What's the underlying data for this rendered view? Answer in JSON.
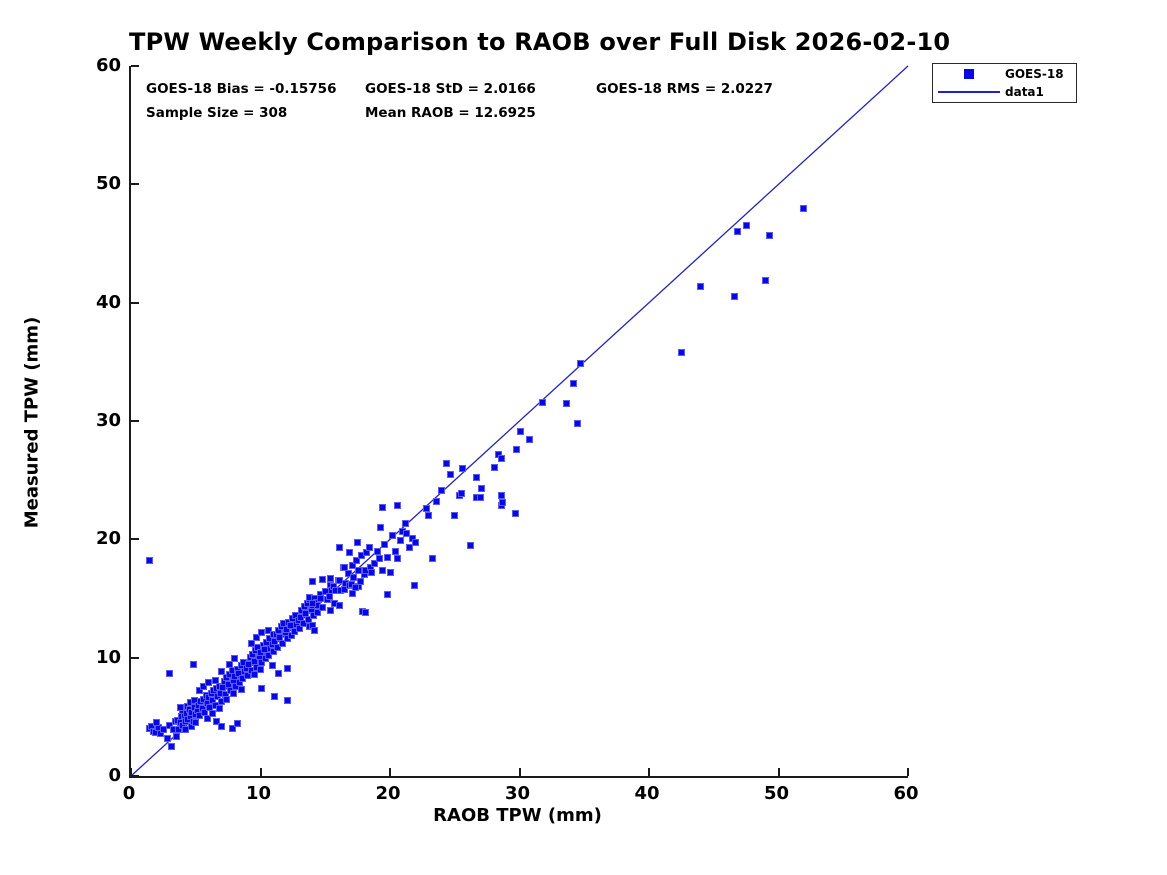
{
  "chart_data": {
    "type": "scatter",
    "title": "TPW Weekly Comparison to RAOB over Full Disk 2026-02-10",
    "xlabel": "RAOB TPW (mm)",
    "ylabel": "Measured TPW (mm)",
    "xlim": [
      0,
      60
    ],
    "ylim": [
      0,
      60
    ],
    "xticks": [
      0,
      10,
      20,
      30,
      40,
      50,
      60
    ],
    "yticks": [
      0,
      10,
      20,
      30,
      40,
      50,
      60
    ],
    "grid": false,
    "legend_position": "outside-top-right",
    "stats": {
      "bias": "GOES-18 Bias = -0.15756",
      "std": "GOES-18 StD = 2.0166",
      "rms": "GOES-18 RMS = 2.0227",
      "sample_size": "Sample Size = 308",
      "mean_raob": "Mean RAOB = 12.6925"
    },
    "legend": [
      {
        "label": "GOES-18",
        "sample": "square-marker"
      },
      {
        "label": "data1",
        "sample": "line"
      }
    ],
    "colors": {
      "marker_fill": "#0606ec",
      "marker_edge": "#5a5af6",
      "line": "#2121cc",
      "axis": "#1a1a1a",
      "text": "#000000"
    },
    "series": [
      {
        "name": "GOES-18",
        "type": "scatter",
        "points": [
          [
            1.4,
            4.0
          ],
          [
            1.6,
            4.2
          ],
          [
            1.7,
            3.8
          ],
          [
            1.9,
            3.7
          ],
          [
            2.1,
            4.1
          ],
          [
            2.3,
            3.6
          ],
          [
            2.5,
            3.9
          ],
          [
            2.8,
            3.2
          ],
          [
            3.0,
            4.3
          ],
          [
            3.1,
            2.5
          ],
          [
            3.3,
            3.9
          ],
          [
            3.5,
            3.3
          ],
          [
            2.0,
            4.5
          ],
          [
            3.4,
            4.6
          ],
          [
            1.4,
            18.2
          ],
          [
            3.0,
            8.7
          ],
          [
            4.8,
            9.4
          ],
          [
            3.6,
            4.7
          ],
          [
            3.7,
            3.9
          ],
          [
            3.8,
            4.5
          ],
          [
            3.9,
            5.0
          ],
          [
            4.0,
            4.3
          ],
          [
            4.0,
            5.5
          ],
          [
            4.1,
            5.0
          ],
          [
            4.2,
            4.6
          ],
          [
            4.2,
            3.9
          ],
          [
            4.3,
            5.3
          ],
          [
            4.4,
            4.8
          ],
          [
            4.4,
            5.9
          ],
          [
            4.5,
            5.6
          ],
          [
            4.6,
            5.0
          ],
          [
            4.6,
            6.2
          ],
          [
            4.7,
            5.4
          ],
          [
            4.7,
            4.2
          ],
          [
            4.8,
            4.6
          ],
          [
            4.9,
            5.8
          ],
          [
            4.9,
            6.4
          ],
          [
            5.0,
            5.2
          ],
          [
            5.0,
            4.5
          ],
          [
            3.8,
            5.8
          ],
          [
            5.1,
            5.5
          ],
          [
            5.2,
            6.0
          ],
          [
            5.3,
            5.1
          ],
          [
            5.3,
            7.2
          ],
          [
            5.4,
            6.3
          ],
          [
            5.5,
            5.7
          ],
          [
            5.6,
            6.5
          ],
          [
            5.6,
            7.6
          ],
          [
            5.7,
            5.4
          ],
          [
            5.8,
            6.8
          ],
          [
            5.9,
            6.1
          ],
          [
            5.9,
            4.9
          ],
          [
            6.0,
            6.6
          ],
          [
            6.0,
            7.9
          ],
          [
            6.1,
            5.8
          ],
          [
            6.2,
            7.0
          ],
          [
            6.3,
            6.4
          ],
          [
            6.3,
            5.3
          ],
          [
            6.4,
            7.2
          ],
          [
            6.5,
            6.0
          ],
          [
            6.5,
            8.1
          ],
          [
            6.6,
            7.4
          ],
          [
            6.6,
            4.6
          ],
          [
            6.7,
            6.7
          ],
          [
            6.8,
            7.6
          ],
          [
            6.8,
            5.7
          ],
          [
            6.9,
            7.0
          ],
          [
            7.0,
            6.3
          ],
          [
            7.0,
            4.2
          ],
          [
            7.1,
            7.5
          ],
          [
            7.2,
            8.0
          ],
          [
            7.3,
            6.9
          ],
          [
            7.4,
            8.3
          ],
          [
            7.4,
            6.5
          ],
          [
            7.5,
            7.7
          ],
          [
            7.6,
            8.6
          ],
          [
            7.6,
            9.4
          ],
          [
            7.7,
            7.2
          ],
          [
            7.8,
            8.9
          ],
          [
            7.8,
            4.0
          ],
          [
            7.9,
            8.1
          ],
          [
            7.9,
            7.0
          ],
          [
            8.0,
            8.4
          ],
          [
            8.0,
            9.9
          ],
          [
            8.1,
            7.6
          ],
          [
            8.2,
            9.0
          ],
          [
            8.2,
            4.4
          ],
          [
            8.3,
            8.7
          ],
          [
            8.4,
            7.9
          ],
          [
            8.5,
            9.3
          ],
          [
            8.5,
            7.3
          ],
          [
            8.6,
            8.2
          ],
          [
            8.7,
            9.6
          ],
          [
            8.8,
            8.8
          ],
          [
            8.9,
            9.1
          ],
          [
            9.0,
            8.5
          ],
          [
            7.0,
            8.8
          ],
          [
            9.1,
            9.4
          ],
          [
            9.2,
            10.0
          ],
          [
            9.3,
            8.9
          ],
          [
            9.3,
            11.2
          ],
          [
            9.4,
            10.3
          ],
          [
            9.5,
            9.7
          ],
          [
            9.5,
            8.6
          ],
          [
            9.6,
            10.6
          ],
          [
            9.7,
            9.2
          ],
          [
            9.7,
            11.7
          ],
          [
            9.8,
            10.9
          ],
          [
            9.9,
            10.1
          ],
          [
            10.0,
            10.4
          ],
          [
            10.0,
            9.0
          ],
          [
            10.1,
            9.6
          ],
          [
            10.1,
            12.1
          ],
          [
            10.1,
            7.4
          ],
          [
            10.2,
            11.0
          ],
          [
            10.3,
            10.7
          ],
          [
            10.4,
            9.9
          ],
          [
            10.5,
            11.3
          ],
          [
            10.6,
            10.2
          ],
          [
            10.6,
            12.3
          ],
          [
            10.7,
            11.6
          ],
          [
            10.8,
            10.8
          ],
          [
            10.9,
            11.1
          ],
          [
            10.9,
            9.3
          ],
          [
            11.0,
            10.5
          ],
          [
            11.0,
            12.0
          ],
          [
            11.1,
            6.7
          ],
          [
            11.1,
            11.4
          ],
          [
            11.2,
            12.0
          ],
          [
            11.3,
            10.9
          ],
          [
            11.4,
            12.3
          ],
          [
            11.4,
            8.7
          ],
          [
            11.5,
            11.7
          ],
          [
            11.6,
            12.6
          ],
          [
            11.7,
            11.2
          ],
          [
            11.8,
            12.9
          ],
          [
            11.9,
            12.1
          ],
          [
            12.0,
            12.4
          ],
          [
            12.1,
            11.6
          ],
          [
            12.1,
            9.1
          ],
          [
            12.1,
            6.4
          ],
          [
            12.2,
            13.0
          ],
          [
            12.3,
            12.7
          ],
          [
            12.4,
            11.9
          ],
          [
            12.5,
            13.3
          ],
          [
            12.6,
            12.2
          ],
          [
            12.7,
            13.6
          ],
          [
            12.8,
            12.8
          ],
          [
            12.9,
            13.1
          ],
          [
            13.0,
            12.5
          ],
          [
            13.1,
            13.4
          ],
          [
            13.2,
            14.0
          ],
          [
            13.3,
            12.9
          ],
          [
            13.4,
            14.3
          ],
          [
            13.5,
            13.7
          ],
          [
            13.6,
            14.6
          ],
          [
            13.7,
            13.2
          ],
          [
            13.8,
            14.9
          ],
          [
            13.8,
            12.6
          ],
          [
            13.8,
            15.1
          ],
          [
            13.9,
            14.1
          ],
          [
            14.0,
            14.4
          ],
          [
            14.0,
            16.4
          ],
          [
            14.0,
            12.7
          ],
          [
            14.1,
            13.6
          ],
          [
            14.2,
            15.0
          ],
          [
            14.2,
            12.3
          ],
          [
            14.3,
            14.7
          ],
          [
            14.4,
            13.9
          ],
          [
            14.4,
            14.4
          ],
          [
            14.4,
            13.8
          ],
          [
            14.6,
            15.3
          ],
          [
            14.6,
            15.0
          ],
          [
            14.8,
            14.2
          ],
          [
            14.8,
            16.6
          ],
          [
            15.0,
            15.6
          ],
          [
            14.0,
            14.6
          ],
          [
            15.2,
            14.9
          ],
          [
            15.3,
            15.2
          ],
          [
            15.4,
            16.1
          ],
          [
            15.4,
            16.7
          ],
          [
            15.4,
            14.0
          ],
          [
            15.5,
            15.7
          ],
          [
            15.6,
            16.0
          ],
          [
            15.7,
            14.6
          ],
          [
            15.8,
            15.7
          ],
          [
            16.0,
            16.5
          ],
          [
            16.1,
            14.4
          ],
          [
            16.1,
            16.5
          ],
          [
            16.1,
            19.3
          ],
          [
            16.2,
            15.7
          ],
          [
            16.4,
            17.6
          ],
          [
            16.5,
            15.8
          ],
          [
            16.5,
            17.6
          ],
          [
            16.6,
            16.3
          ],
          [
            16.8,
            17.1
          ],
          [
            16.9,
            16.1
          ],
          [
            16.9,
            18.9
          ],
          [
            17.0,
            16.2
          ],
          [
            17.1,
            17.8
          ],
          [
            17.1,
            15.4
          ],
          [
            17.2,
            16.8
          ],
          [
            17.4,
            18.2
          ],
          [
            17.5,
            19.7
          ],
          [
            17.6,
            17.4
          ],
          [
            17.6,
            16.0
          ],
          [
            17.7,
            16.4
          ],
          [
            17.8,
            18.6
          ],
          [
            17.9,
            13.9
          ],
          [
            18.0,
            17.0
          ],
          [
            18.1,
            13.8
          ],
          [
            18.1,
            17.4
          ],
          [
            18.2,
            18.9
          ],
          [
            18.4,
            19.3
          ],
          [
            18.5,
            17.6
          ],
          [
            18.6,
            17.2
          ],
          [
            18.8,
            18.0
          ],
          [
            19.0,
            19.0
          ],
          [
            17.3,
            15.9
          ],
          [
            19.2,
            18.4
          ],
          [
            19.3,
            21.0
          ],
          [
            19.4,
            17.4
          ],
          [
            19.4,
            22.7
          ],
          [
            19.6,
            19.6
          ],
          [
            19.8,
            18.5
          ],
          [
            19.8,
            15.3
          ],
          [
            20.0,
            17.2
          ],
          [
            20.2,
            20.3
          ],
          [
            20.4,
            19.0
          ],
          [
            20.6,
            22.9
          ],
          [
            20.6,
            18.4
          ],
          [
            20.8,
            19.9
          ],
          [
            21.0,
            20.7
          ],
          [
            21.2,
            21.3
          ],
          [
            21.3,
            20.5
          ],
          [
            21.5,
            19.3
          ],
          [
            21.7,
            20.1
          ],
          [
            21.9,
            16.1
          ],
          [
            22.0,
            19.7
          ],
          [
            22.8,
            22.6
          ],
          [
            23.0,
            22.0
          ],
          [
            23.3,
            18.4
          ],
          [
            23.6,
            23.2
          ],
          [
            24.0,
            24.1
          ],
          [
            24.4,
            26.4
          ],
          [
            24.7,
            25.5
          ],
          [
            25.0,
            22.0
          ],
          [
            25.4,
            23.7
          ],
          [
            25.5,
            23.9
          ],
          [
            25.6,
            26.0
          ],
          [
            26.2,
            19.5
          ],
          [
            26.7,
            25.2
          ],
          [
            26.7,
            23.5
          ],
          [
            27.0,
            23.5
          ],
          [
            27.1,
            24.3
          ],
          [
            28.1,
            26.1
          ],
          [
            28.4,
            27.2
          ],
          [
            28.6,
            26.8
          ],
          [
            28.6,
            23.7
          ],
          [
            28.6,
            22.9
          ],
          [
            28.7,
            23.1
          ],
          [
            29.7,
            22.2
          ],
          [
            29.8,
            27.6
          ],
          [
            30.1,
            29.1
          ],
          [
            30.8,
            28.4
          ],
          [
            31.8,
            31.6
          ],
          [
            33.6,
            31.5
          ],
          [
            34.2,
            33.2
          ],
          [
            34.5,
            29.8
          ],
          [
            34.7,
            34.9
          ],
          [
            42.5,
            35.8
          ],
          [
            44.0,
            41.4
          ],
          [
            46.6,
            40.5
          ],
          [
            46.8,
            46.0
          ],
          [
            47.5,
            46.5
          ],
          [
            49.0,
            41.9
          ],
          [
            49.3,
            45.7
          ],
          [
            51.9,
            48.0
          ]
        ]
      },
      {
        "name": "data1",
        "type": "line",
        "points": [
          [
            0,
            0
          ],
          [
            60,
            60
          ]
        ]
      }
    ]
  }
}
